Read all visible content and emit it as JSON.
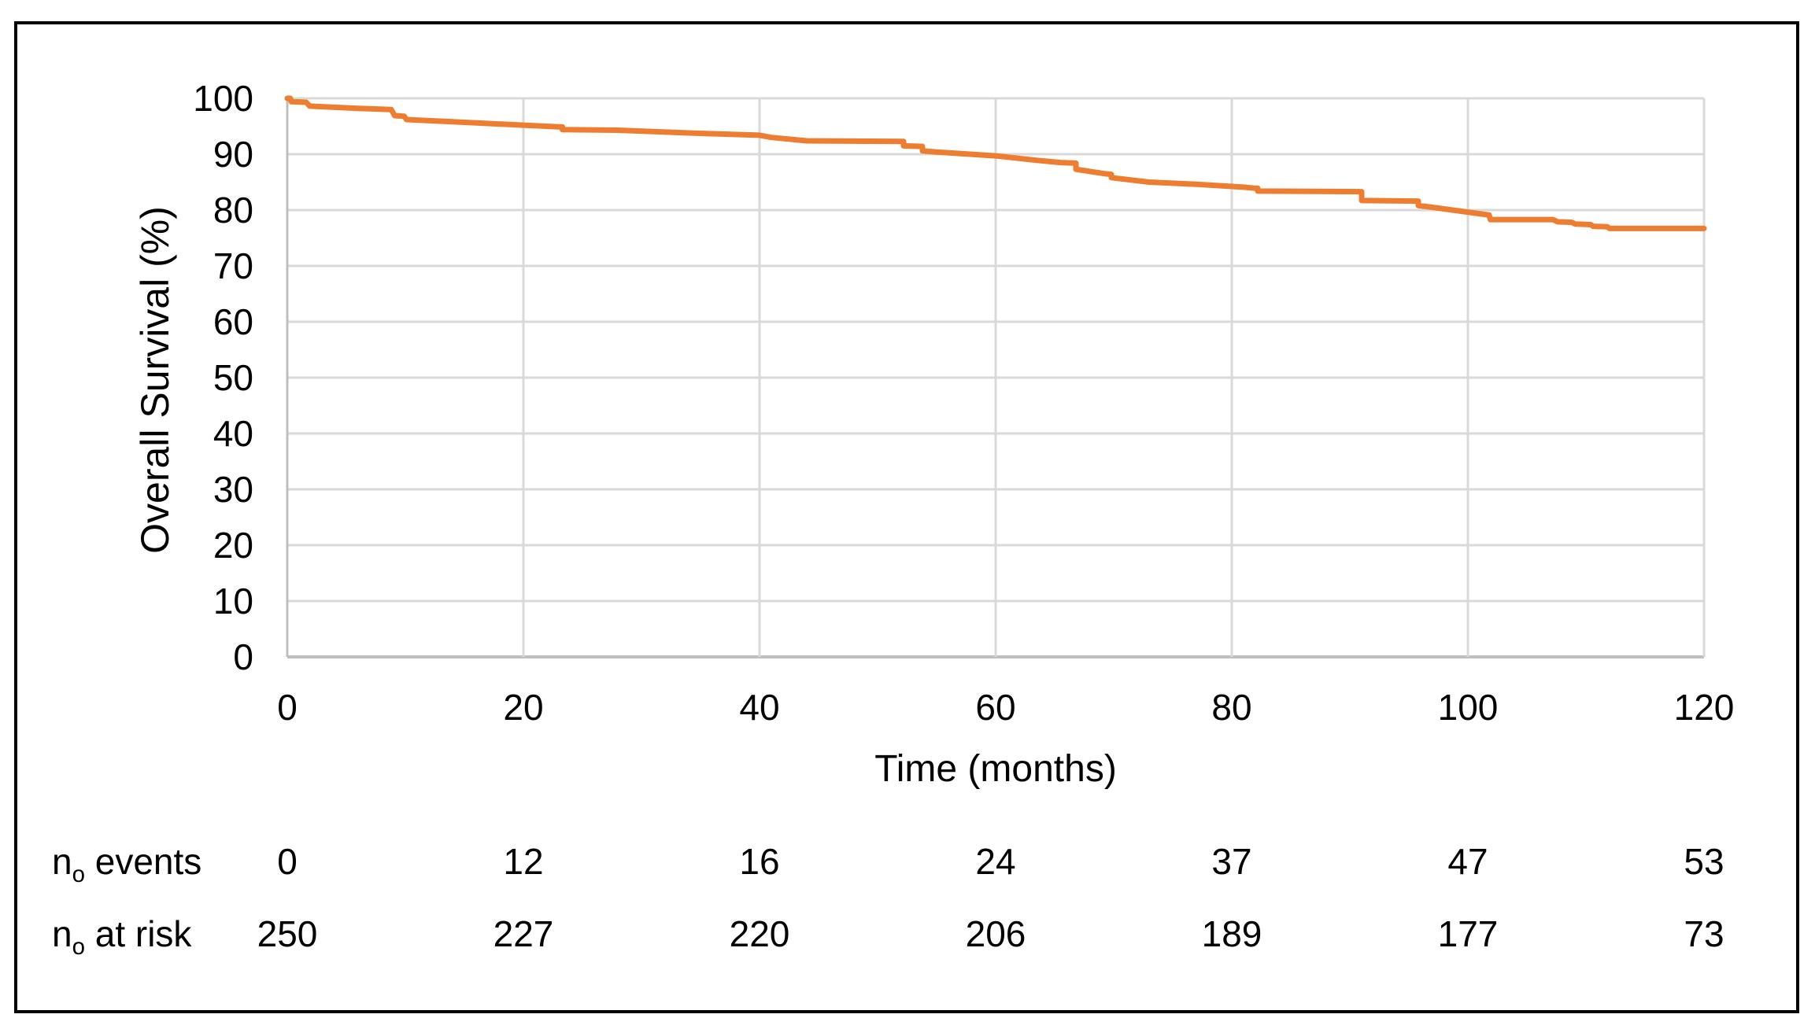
{
  "chart_data": {
    "type": "line",
    "subtype": "kaplan-meier-survival-curve",
    "title": "",
    "xlabel": "Time (months)",
    "ylabel": "Overall Survival (%)",
    "xlim": [
      0,
      120
    ],
    "ylim": [
      0,
      100
    ],
    "xticks": [
      0,
      20,
      40,
      60,
      80,
      100,
      120
    ],
    "yticks": [
      0,
      10,
      20,
      30,
      40,
      50,
      60,
      70,
      80,
      90,
      100
    ],
    "grid": true,
    "legend": "none",
    "series": [
      {
        "name": "Overall Survival",
        "color": "#ED7D31",
        "points": [
          [
            0,
            100
          ],
          [
            0.25,
            100
          ],
          [
            0.35,
            99.4
          ],
          [
            1.6,
            99.3
          ],
          [
            1.9,
            98.6
          ],
          [
            6,
            98.2
          ],
          [
            8.8,
            98.0
          ],
          [
            9.1,
            96.9
          ],
          [
            9.9,
            96.8
          ],
          [
            10.1,
            96.2
          ],
          [
            14,
            95.8
          ],
          [
            20,
            95.2
          ],
          [
            23,
            94.9
          ],
          [
            23.3,
            94.9
          ],
          [
            23.3,
            94.4
          ],
          [
            28,
            94.3
          ],
          [
            34,
            93.8
          ],
          [
            40,
            93.4
          ],
          [
            41,
            93.0
          ],
          [
            44,
            92.4
          ],
          [
            52,
            92.3
          ],
          [
            52.2,
            92.3
          ],
          [
            52.2,
            91.5
          ],
          [
            53.8,
            91.4
          ],
          [
            53.8,
            90.6
          ],
          [
            55,
            90.4
          ],
          [
            60,
            89.7
          ],
          [
            63.5,
            88.9
          ],
          [
            65.5,
            88.5
          ],
          [
            66.8,
            88.4
          ],
          [
            66.8,
            87.3
          ],
          [
            69.3,
            86.5
          ],
          [
            69.8,
            86.4
          ],
          [
            69.8,
            85.8
          ],
          [
            73,
            85.0
          ],
          [
            77,
            84.6
          ],
          [
            81,
            84.1
          ],
          [
            82,
            83.9
          ],
          [
            82.2,
            83.9
          ],
          [
            82.2,
            83.4
          ],
          [
            91,
            83.3
          ],
          [
            91,
            81.7
          ],
          [
            95.8,
            81.6
          ],
          [
            95.8,
            80.8
          ],
          [
            97,
            80.5
          ],
          [
            101.8,
            79.1
          ],
          [
            101.9,
            78.3
          ],
          [
            107.2,
            78.3
          ],
          [
            107.6,
            77.9
          ],
          [
            108.8,
            77.8
          ],
          [
            109.1,
            77.5
          ],
          [
            110.4,
            77.4
          ],
          [
            110.6,
            77.1
          ],
          [
            111.8,
            77.0
          ],
          [
            112,
            76.7
          ],
          [
            120,
            76.7
          ]
        ]
      }
    ]
  },
  "risk_table": {
    "rows": [
      {
        "label_main": "n",
        "label_sub": "o",
        "label_suffix": " events",
        "values": [
          "0",
          "12",
          "16",
          "24",
          "37",
          "47",
          "53"
        ]
      },
      {
        "label_main": "n",
        "label_sub": "o",
        "label_suffix": " at risk",
        "values": [
          "250",
          "227",
          "220",
          "206",
          "189",
          "177",
          "73"
        ]
      }
    ]
  },
  "colors": {
    "curve": "#ED7D31",
    "gridline": "#D9D9D9",
    "axis_line": "#BFBFBF",
    "border": "#000000",
    "text": "#000000",
    "background": "#FFFFFF"
  }
}
